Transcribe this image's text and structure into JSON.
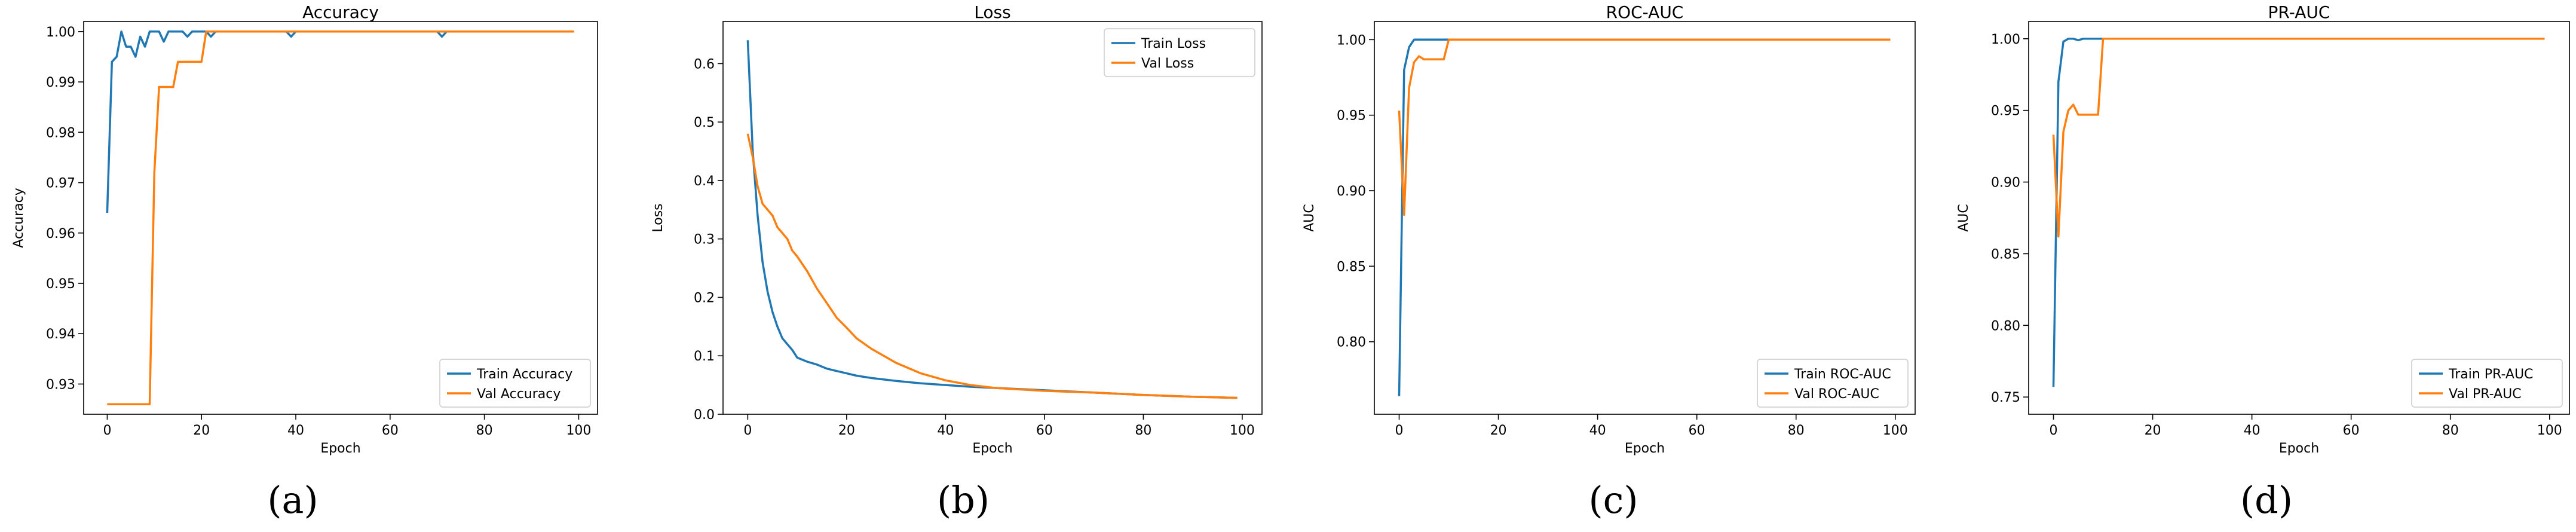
{
  "panel_labels": [
    "(a)",
    "(b)",
    "(c)",
    "(d)"
  ],
  "colors": {
    "train": "#1f77b4",
    "val": "#ff7f0e"
  },
  "chart_data": [
    {
      "type": "line",
      "title": "Accuracy",
      "xlabel": "Epoch",
      "ylabel": "Accuracy",
      "xlim": [
        -5,
        104
      ],
      "ylim": [
        0.924,
        1.002
      ],
      "xticks": [
        0,
        20,
        40,
        60,
        80,
        100
      ],
      "yticks": [
        0.93,
        0.94,
        0.95,
        0.96,
        0.97,
        0.98,
        0.99,
        1.0
      ],
      "ytick_labels": [
        "0.93",
        "0.94",
        "0.95",
        "0.96",
        "0.97",
        "0.98",
        "0.99",
        "1.00"
      ],
      "legend_position": "lower-right",
      "series": [
        {
          "name": "Train Accuracy",
          "color": "#1f77b4",
          "x": [
            0,
            1,
            2,
            3,
            4,
            5,
            6,
            7,
            8,
            9,
            10,
            11,
            12,
            13,
            14,
            15,
            16,
            17,
            18,
            19,
            20,
            21,
            22,
            23,
            24,
            25,
            30,
            35,
            38,
            39,
            40,
            45,
            50,
            60,
            70,
            71,
            72,
            75,
            80,
            90,
            99
          ],
          "y": [
            0.964,
            0.994,
            0.995,
            1.0,
            0.997,
            0.997,
            0.995,
            0.999,
            0.997,
            1.0,
            1.0,
            1.0,
            0.998,
            1.0,
            1.0,
            1.0,
            1.0,
            0.999,
            1.0,
            1.0,
            1.0,
            1.0,
            0.999,
            1.0,
            1.0,
            1.0,
            1.0,
            1.0,
            1.0,
            0.999,
            1.0,
            1.0,
            1.0,
            1.0,
            1.0,
            0.999,
            1.0,
            1.0,
            1.0,
            1.0,
            1.0
          ]
        },
        {
          "name": "Val Accuracy",
          "color": "#ff7f0e",
          "x": [
            0,
            9,
            10,
            11,
            12,
            13,
            14,
            15,
            16,
            17,
            18,
            19,
            20,
            21,
            22,
            99
          ],
          "y": [
            0.926,
            0.926,
            0.972,
            0.989,
            0.989,
            0.989,
            0.989,
            0.994,
            0.994,
            0.994,
            0.994,
            0.994,
            0.994,
            1.0,
            1.0,
            1.0
          ]
        }
      ]
    },
    {
      "type": "line",
      "title": "Loss",
      "xlabel": "Epoch",
      "ylabel": "Loss",
      "xlim": [
        -5,
        104
      ],
      "ylim": [
        0,
        0.672
      ],
      "xticks": [
        0,
        20,
        40,
        60,
        80,
        100
      ],
      "yticks": [
        0.0,
        0.1,
        0.2,
        0.3,
        0.4,
        0.5,
        0.6
      ],
      "ytick_labels": [
        "0.0",
        "0.1",
        "0.2",
        "0.3",
        "0.4",
        "0.5",
        "0.6"
      ],
      "legend_position": "upper-right",
      "series": [
        {
          "name": "Train Loss",
          "color": "#1f77b4",
          "x": [
            0,
            1,
            2,
            3,
            4,
            5,
            6,
            7,
            8,
            9,
            10,
            12,
            14,
            16,
            18,
            20,
            22,
            25,
            30,
            35,
            40,
            45,
            50,
            60,
            70,
            80,
            90,
            99
          ],
          "y": [
            0.64,
            0.45,
            0.34,
            0.26,
            0.21,
            0.175,
            0.15,
            0.13,
            0.12,
            0.11,
            0.097,
            0.09,
            0.085,
            0.078,
            0.074,
            0.07,
            0.066,
            0.062,
            0.057,
            0.053,
            0.05,
            0.047,
            0.045,
            0.041,
            0.037,
            0.033,
            0.03,
            0.028
          ]
        },
        {
          "name": "Val Loss",
          "color": "#ff7f0e",
          "x": [
            0,
            1,
            2,
            3,
            4,
            5,
            6,
            7,
            8,
            9,
            10,
            12,
            14,
            16,
            18,
            20,
            22,
            25,
            30,
            35,
            40,
            45,
            50,
            60,
            70,
            80,
            90,
            99
          ],
          "y": [
            0.48,
            0.44,
            0.39,
            0.36,
            0.35,
            0.34,
            0.32,
            0.31,
            0.3,
            0.28,
            0.27,
            0.245,
            0.215,
            0.19,
            0.165,
            0.148,
            0.13,
            0.112,
            0.088,
            0.07,
            0.058,
            0.05,
            0.045,
            0.04,
            0.037,
            0.033,
            0.03,
            0.028
          ]
        }
      ]
    },
    {
      "type": "line",
      "title": "ROC-AUC",
      "xlabel": "Epoch",
      "ylabel": "AUC",
      "xlim": [
        -5,
        104
      ],
      "ylim": [
        0.752,
        1.012
      ],
      "xticks": [
        0,
        20,
        40,
        60,
        80,
        100
      ],
      "yticks": [
        0.8,
        0.85,
        0.9,
        0.95,
        1.0
      ],
      "ytick_labels": [
        "0.80",
        "0.85",
        "0.90",
        "0.95",
        "1.00"
      ],
      "legend_position": "lower-right",
      "series": [
        {
          "name": "Train ROC-AUC",
          "color": "#1f77b4",
          "x": [
            0,
            1,
            2,
            3,
            4,
            5,
            6,
            8,
            10,
            99
          ],
          "y": [
            0.764,
            0.98,
            0.995,
            1.0,
            1.0,
            1.0,
            1.0,
            1.0,
            1.0,
            1.0
          ]
        },
        {
          "name": "Val ROC-AUC",
          "color": "#ff7f0e",
          "x": [
            0,
            1,
            2,
            3,
            4,
            5,
            6,
            7,
            8,
            9,
            10,
            11,
            99
          ],
          "y": [
            0.953,
            0.884,
            0.968,
            0.985,
            0.989,
            0.987,
            0.987,
            0.987,
            0.987,
            0.987,
            1.0,
            1.0,
            1.0
          ]
        }
      ]
    },
    {
      "type": "line",
      "title": "PR-AUC",
      "xlabel": "Epoch",
      "ylabel": "AUC",
      "xlim": [
        -5,
        104
      ],
      "ylim": [
        0.738,
        1.012
      ],
      "xticks": [
        0,
        20,
        40,
        60,
        80,
        100
      ],
      "yticks": [
        0.75,
        0.8,
        0.85,
        0.9,
        0.95,
        1.0
      ],
      "ytick_labels": [
        "0.75",
        "0.80",
        "0.85",
        "0.90",
        "0.95",
        "1.00"
      ],
      "legend_position": "lower-right",
      "series": [
        {
          "name": "Train PR-AUC",
          "color": "#1f77b4",
          "x": [
            0,
            1,
            2,
            3,
            4,
            5,
            6,
            7,
            8,
            10,
            99
          ],
          "y": [
            0.757,
            0.97,
            0.998,
            1.0,
            1.0,
            0.999,
            1.0,
            1.0,
            1.0,
            1.0,
            1.0
          ]
        },
        {
          "name": "Val PR-AUC",
          "color": "#ff7f0e",
          "x": [
            0,
            1,
            2,
            3,
            4,
            5,
            6,
            7,
            8,
            9,
            10,
            11,
            99
          ],
          "y": [
            0.933,
            0.862,
            0.935,
            0.95,
            0.954,
            0.947,
            0.947,
            0.947,
            0.947,
            0.947,
            1.0,
            1.0,
            1.0
          ]
        }
      ]
    }
  ]
}
